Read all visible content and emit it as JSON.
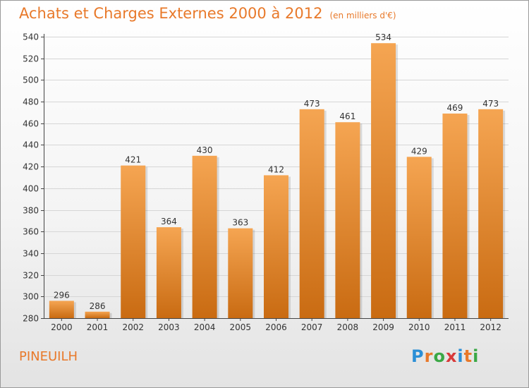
{
  "header": {
    "title": "Achats et Charges Externes 2000 à 2012",
    "subtitle": "(en milliers d'€)"
  },
  "footer": {
    "commune": "PINEUILH",
    "logo_letters": [
      {
        "char": "P",
        "color": "#2b8fd6"
      },
      {
        "char": "r",
        "color": "#e8792a"
      },
      {
        "char": "o",
        "color": "#3aa845"
      },
      {
        "char": "x",
        "color": "#d83a3a"
      },
      {
        "char": "i",
        "color": "#2b8fd6"
      },
      {
        "char": "t",
        "color": "#e8792a"
      },
      {
        "char": "i",
        "color": "#3aa845"
      }
    ]
  },
  "colors": {
    "accent": "#e8792a",
    "bar_top": "#f5a552",
    "bar_bottom": "#c96b12",
    "grid": "#d6d6d6"
  },
  "chart_data": {
    "type": "bar",
    "title": "Achats et Charges Externes 2000 à 2012",
    "subtitle": "(en milliers d'€)",
    "categories": [
      "2000",
      "2001",
      "2002",
      "2003",
      "2004",
      "2005",
      "2006",
      "2007",
      "2008",
      "2009",
      "2010",
      "2011",
      "2012"
    ],
    "values": [
      296,
      286,
      421,
      364,
      430,
      363,
      412,
      473,
      461,
      534,
      429,
      469,
      473
    ],
    "ylim": [
      280,
      540
    ],
    "yticks": [
      280,
      300,
      320,
      340,
      360,
      380,
      400,
      420,
      440,
      460,
      480,
      500,
      520,
      540
    ],
    "grid": true,
    "data_labels": true
  }
}
